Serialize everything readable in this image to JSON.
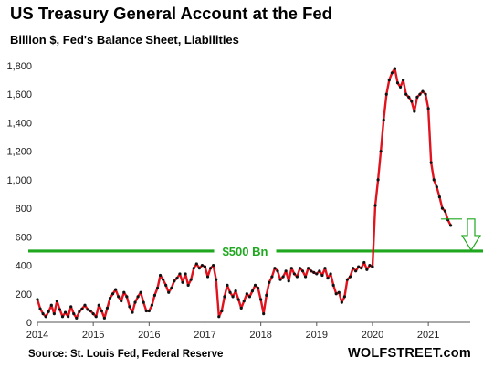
{
  "title": "US Treasury General Account at the Fed",
  "subtitle": "Billion $, Fed's Balance Sheet, Liabilities",
  "source": "Source: St. Louis Fed, Federal Reserve",
  "brand": "WOLFSTREET.com",
  "chart_data": {
    "type": "line",
    "title": "US Treasury General Account at the Fed",
    "subtitle": "Billion $, Fed's Balance Sheet, Liabilities",
    "xlabel": "",
    "ylabel": "",
    "xlim": [
      2014.0,
      2021.75
    ],
    "ylim": [
      0,
      1800
    ],
    "x_ticks": [
      2014,
      2015,
      2016,
      2017,
      2018,
      2019,
      2020,
      2021
    ],
    "x_tick_labels": [
      "2014",
      "2015",
      "2016",
      "2017",
      "2018",
      "2019",
      "2020",
      "2021"
    ],
    "y_ticks": [
      0,
      200,
      400,
      600,
      800,
      1000,
      1200,
      1400,
      1600,
      1800
    ],
    "y_tick_labels": [
      "0",
      "200",
      "400",
      "600",
      "800",
      "1,000",
      "1,200",
      "1,400",
      "1,600",
      "1,800"
    ],
    "grid": false,
    "line_color": "#e0141e",
    "marker_color": "#111111",
    "reference_line": {
      "y": 500,
      "label": "$500 Bn",
      "color": "#1fa81f"
    },
    "annotation_arrow": {
      "from": 725,
      "to": 500,
      "color": "#1fa81f"
    },
    "series": [
      {
        "x": [
          2014.0,
          2014.05,
          2014.1,
          2014.15,
          2014.2,
          2014.25,
          2014.3,
          2014.35,
          2014.4,
          2014.45,
          2014.5,
          2014.55,
          2014.6,
          2014.65,
          2014.7,
          2014.75,
          2014.8,
          2014.85,
          2014.9,
          2014.95,
          2015.0,
          2015.05,
          2015.1,
          2015.15,
          2015.2,
          2015.25,
          2015.3,
          2015.35,
          2015.4,
          2015.45,
          2015.5,
          2015.55,
          2015.6,
          2015.65,
          2015.7,
          2015.75,
          2015.8,
          2015.85,
          2015.9,
          2015.95,
          2016.0,
          2016.05,
          2016.1,
          2016.15,
          2016.2,
          2016.25,
          2016.3,
          2016.35,
          2016.4,
          2016.45,
          2016.5,
          2016.55,
          2016.6,
          2016.65,
          2016.7,
          2016.75,
          2016.8,
          2016.85,
          2016.9,
          2016.95,
          2017.0,
          2017.05,
          2017.1,
          2017.15,
          2017.2,
          2017.25,
          2017.3,
          2017.35,
          2017.4,
          2017.45,
          2017.5,
          2017.55,
          2017.6,
          2017.65,
          2017.7,
          2017.75,
          2017.8,
          2017.85,
          2017.9,
          2017.95,
          2018.0,
          2018.05,
          2018.1,
          2018.15,
          2018.2,
          2018.25,
          2018.3,
          2018.35,
          2018.4,
          2018.45,
          2018.5,
          2018.55,
          2018.6,
          2018.65,
          2018.7,
          2018.75,
          2018.8,
          2018.85,
          2018.9,
          2018.95,
          2019.0,
          2019.05,
          2019.1,
          2019.15,
          2019.2,
          2019.25,
          2019.3,
          2019.35,
          2019.4,
          2019.45,
          2019.5,
          2019.55,
          2019.6,
          2019.65,
          2019.7,
          2019.75,
          2019.8,
          2019.85,
          2019.9,
          2019.95,
          2020.0,
          2020.05,
          2020.1,
          2020.15,
          2020.2,
          2020.25,
          2020.3,
          2020.35,
          2020.4,
          2020.45,
          2020.5,
          2020.55,
          2020.6,
          2020.65,
          2020.7,
          2020.75,
          2020.8,
          2020.85,
          2020.9,
          2020.95,
          2021.0,
          2021.05,
          2021.1,
          2021.15,
          2021.2,
          2021.25,
          2021.3,
          2021.35,
          2021.4
        ],
        "values": [
          160,
          95,
          60,
          40,
          75,
          120,
          60,
          150,
          90,
          40,
          70,
          40,
          110,
          60,
          30,
          75,
          95,
          120,
          90,
          80,
          60,
          40,
          120,
          80,
          30,
          100,
          170,
          200,
          230,
          180,
          150,
          210,
          180,
          110,
          70,
          140,
          180,
          210,
          140,
          80,
          80,
          120,
          190,
          240,
          330,
          300,
          260,
          210,
          240,
          290,
          310,
          340,
          280,
          340,
          260,
          300,
          380,
          410,
          380,
          400,
          390,
          320,
          380,
          400,
          300,
          40,
          80,
          180,
          260,
          210,
          180,
          220,
          160,
          100,
          150,
          200,
          180,
          220,
          260,
          240,
          160,
          60,
          190,
          280,
          320,
          380,
          360,
          300,
          320,
          360,
          290,
          380,
          340,
          320,
          380,
          360,
          320,
          380,
          360,
          350,
          340,
          360,
          330,
          380,
          310,
          340,
          260,
          200,
          210,
          140,
          180,
          300,
          320,
          380,
          360,
          390,
          380,
          420,
          370,
          400,
          390,
          820,
          1000,
          1200,
          1420,
          1600,
          1700,
          1750,
          1780,
          1680,
          1650,
          1700,
          1600,
          1580,
          1550,
          1480,
          1580,
          1600,
          1620,
          1600,
          1500,
          1120,
          1000,
          950,
          880,
          800,
          780,
          720,
          680
        ]
      }
    ]
  }
}
